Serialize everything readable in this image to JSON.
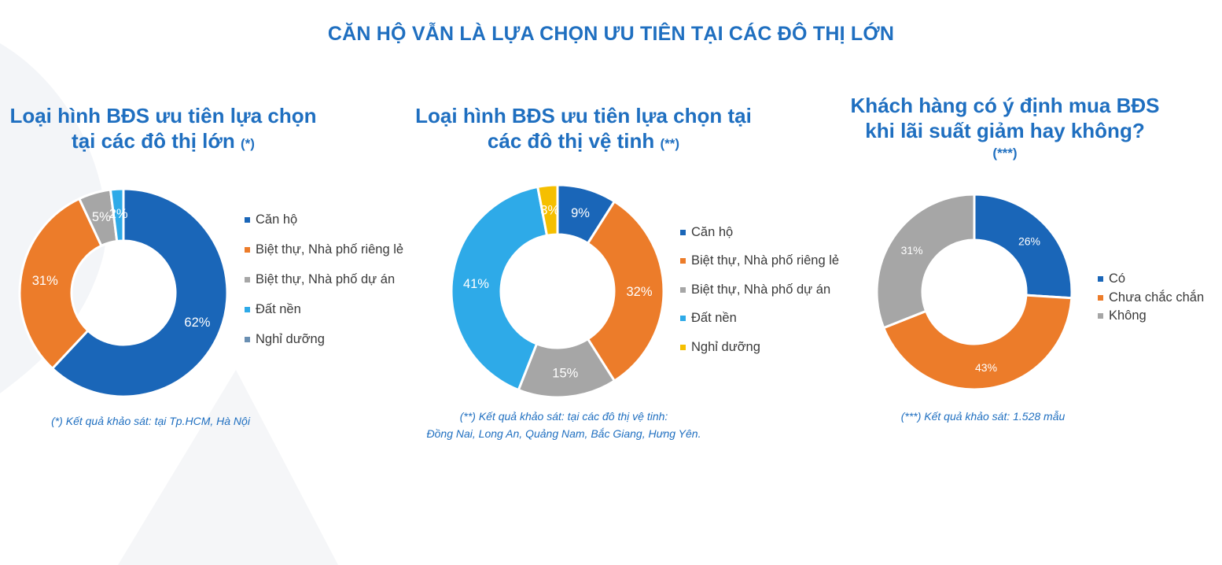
{
  "title": "CĂN HỘ VẪN LÀ LỰA CHỌN ƯU TIÊN TẠI CÁC ĐÔ THỊ LỚN",
  "colors": {
    "blue_dark": "#1a66b8",
    "orange": "#ec7c2a",
    "gray": "#a6a6a6",
    "blue_light": "#2eaae8",
    "yellow": "#f5bf00",
    "slate": "#6a8fb2",
    "title_blue": "#1f6fc0"
  },
  "chart_data": [
    {
      "type": "pie",
      "variant": "donut",
      "title_main_lines": [
        "Loại hình BĐS ưu tiên lựa chọn",
        "tại các đô thị lớn"
      ],
      "title_note": "(*)",
      "categories": [
        "Căn hộ",
        "Biệt thự, Nhà phố riêng lẻ",
        "Biệt thự, Nhà phố dự án",
        "Đất nền",
        "Nghỉ dưỡng"
      ],
      "values": [
        62,
        31,
        5,
        2,
        0
      ],
      "labels": [
        "62%",
        "31%",
        "5%",
        "2%",
        ""
      ],
      "colors": [
        "#1a66b8",
        "#ec7c2a",
        "#a6a6a6",
        "#2eaae8",
        "#6a8fb2"
      ],
      "legend_position": "right",
      "footnote_lines": [
        "(*) Kết quả khảo sát: tại Tp.HCM, Hà Nội"
      ]
    },
    {
      "type": "pie",
      "variant": "donut",
      "title_main_lines": [
        "Loại hình BĐS ưu tiên lựa chọn tại",
        "các đô thị vệ tinh"
      ],
      "title_note": "(**)",
      "categories": [
        "Căn hộ",
        "Biệt thự, Nhà phố riêng lẻ",
        "Biệt thự, Nhà phố dự án",
        "Đất nền",
        "Nghỉ dưỡng"
      ],
      "values": [
        9,
        32,
        15,
        41,
        3
      ],
      "labels": [
        "9%",
        "32%",
        "15%",
        "41%",
        "3%"
      ],
      "colors": [
        "#1a66b8",
        "#ec7c2a",
        "#a6a6a6",
        "#2eaae8",
        "#f5bf00"
      ],
      "legend_position": "right",
      "footnote_lines": [
        "(**) Kết quả khảo sát: tại các đô thị vệ tinh:",
        "Đồng Nai, Long An, Quảng Nam, Bắc Giang, Hưng Yên."
      ]
    },
    {
      "type": "pie",
      "variant": "donut",
      "title_main_lines": [
        "Khách hàng có ý định mua BĐS",
        "khi lãi suất giảm hay không?"
      ],
      "title_note": "(***)",
      "categories": [
        "Có",
        "Chưa chắc chắn",
        "Không"
      ],
      "values": [
        26,
        43,
        31
      ],
      "labels": [
        "26%",
        "43%",
        "31%"
      ],
      "colors": [
        "#1a66b8",
        "#ec7c2a",
        "#a6a6a6"
      ],
      "legend_position": "right",
      "footnote_lines": [
        "(***) Kết quả khảo sát: 1.528 mẫu"
      ]
    }
  ]
}
